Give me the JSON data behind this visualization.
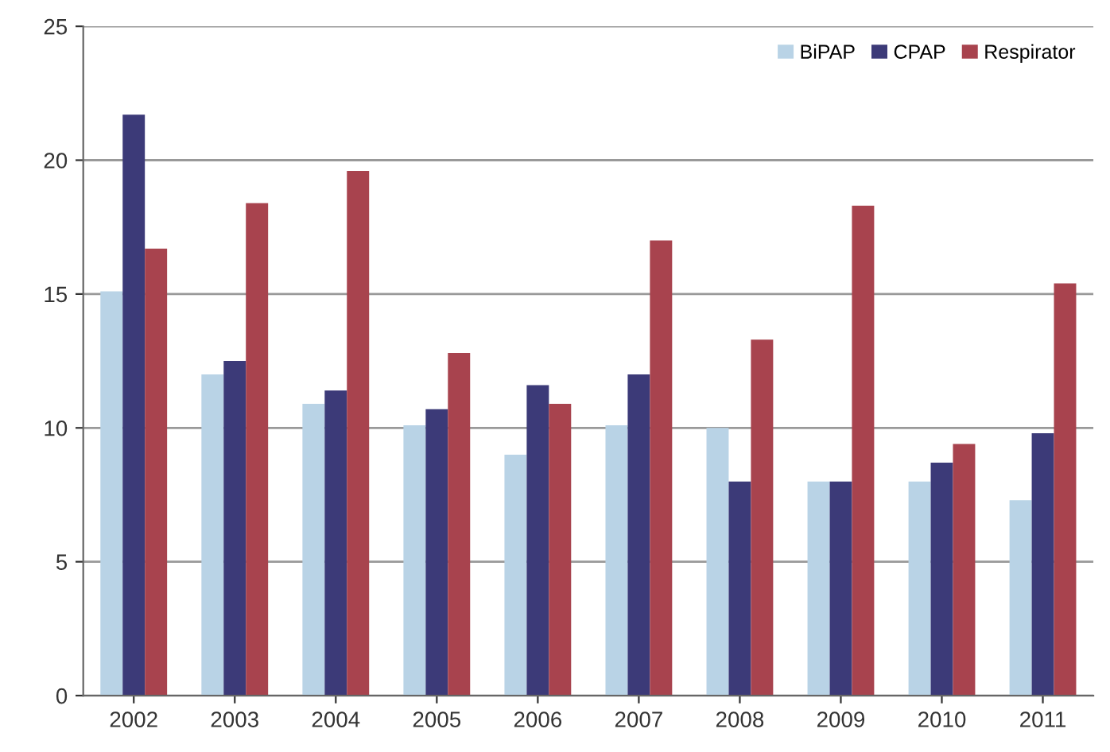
{
  "chart_data": {
    "type": "bar",
    "categories": [
      "2002",
      "2003",
      "2004",
      "2005",
      "2006",
      "2007",
      "2008",
      "2009",
      "2010",
      "2011"
    ],
    "series": [
      {
        "name": "BiPAP",
        "color": "#b9d3e6",
        "values": [
          15.1,
          12.0,
          10.9,
          10.1,
          9.0,
          10.1,
          10.0,
          8.0,
          8.0,
          7.3
        ]
      },
      {
        "name": "CPAP",
        "color": "#3c3a78",
        "values": [
          21.7,
          12.5,
          11.4,
          10.7,
          11.6,
          12.0,
          8.0,
          8.0,
          8.7,
          9.8
        ]
      },
      {
        "name": "Respirator",
        "color": "#a8434e",
        "values": [
          16.7,
          18.4,
          19.6,
          12.8,
          10.9,
          17.0,
          13.3,
          18.3,
          9.4,
          15.4
        ]
      }
    ],
    "ylim": [
      0,
      25
    ],
    "yticks": [
      0,
      5,
      10,
      15,
      20,
      25
    ],
    "grid": "y",
    "legend": "top right"
  }
}
